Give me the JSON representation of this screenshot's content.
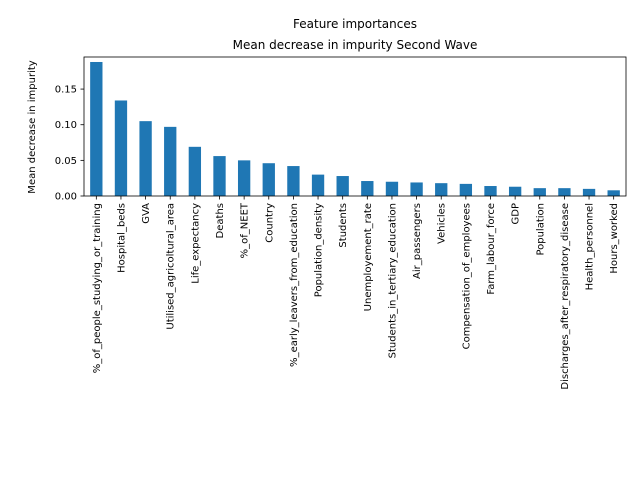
{
  "chart_data": {
    "type": "bar",
    "title": "Feature importances",
    "subtitle": "Mean decrease in impurity Second Wave",
    "xlabel": "",
    "ylabel": "Mean decrease in impurity",
    "ylim": [
      0,
      0.195
    ],
    "yticks": [
      0.0,
      0.05,
      0.1,
      0.15
    ],
    "ytick_labels": [
      "0.00",
      "0.05",
      "0.10",
      "0.15"
    ],
    "grid": false,
    "bar_color": "#1f77b4",
    "categories": [
      "%_of_people_studying_or_training",
      "Hospital_beds",
      "GVA",
      "Utilised_agricoltural_area",
      "Life_expectancy",
      "Deaths",
      "%_of_NEET",
      "Country",
      "%_early_leavers_from_education",
      "Population_density",
      "Students",
      "Unemployement_rate",
      "Students_in_tertiary_education",
      "Air_passengers",
      "Vehicles",
      "Compensation_of_employees",
      "Farm_labour_force",
      "GDP",
      "Population",
      "Discharges_after_respiratory_disease",
      "Health_personnel",
      "Hours_worked"
    ],
    "values": [
      0.188,
      0.134,
      0.105,
      0.097,
      0.069,
      0.056,
      0.05,
      0.046,
      0.042,
      0.03,
      0.028,
      0.021,
      0.02,
      0.019,
      0.018,
      0.017,
      0.014,
      0.013,
      0.011,
      0.011,
      0.01,
      0.008
    ]
  }
}
